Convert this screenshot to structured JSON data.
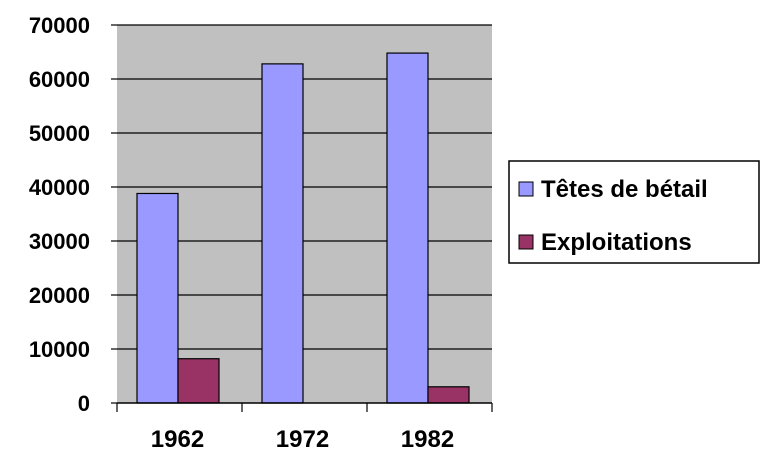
{
  "chart_data": {
    "type": "bar",
    "categories": [
      "1962",
      "1972",
      "1982"
    ],
    "series": [
      {
        "name": "Têtes de bétail",
        "values": [
          38800,
          62800,
          64800
        ],
        "color": "#9999ff"
      },
      {
        "name": "Exploitations",
        "values": [
          8200,
          0,
          3000
        ],
        "color": "#993366"
      }
    ],
    "title": "",
    "xlabel": "",
    "ylabel": "",
    "ylim": [
      0,
      70000
    ],
    "yticks": [
      0,
      10000,
      20000,
      30000,
      40000,
      50000,
      60000,
      70000
    ],
    "grid": true,
    "legend": "right",
    "plot_background": "#c0c0c0"
  }
}
